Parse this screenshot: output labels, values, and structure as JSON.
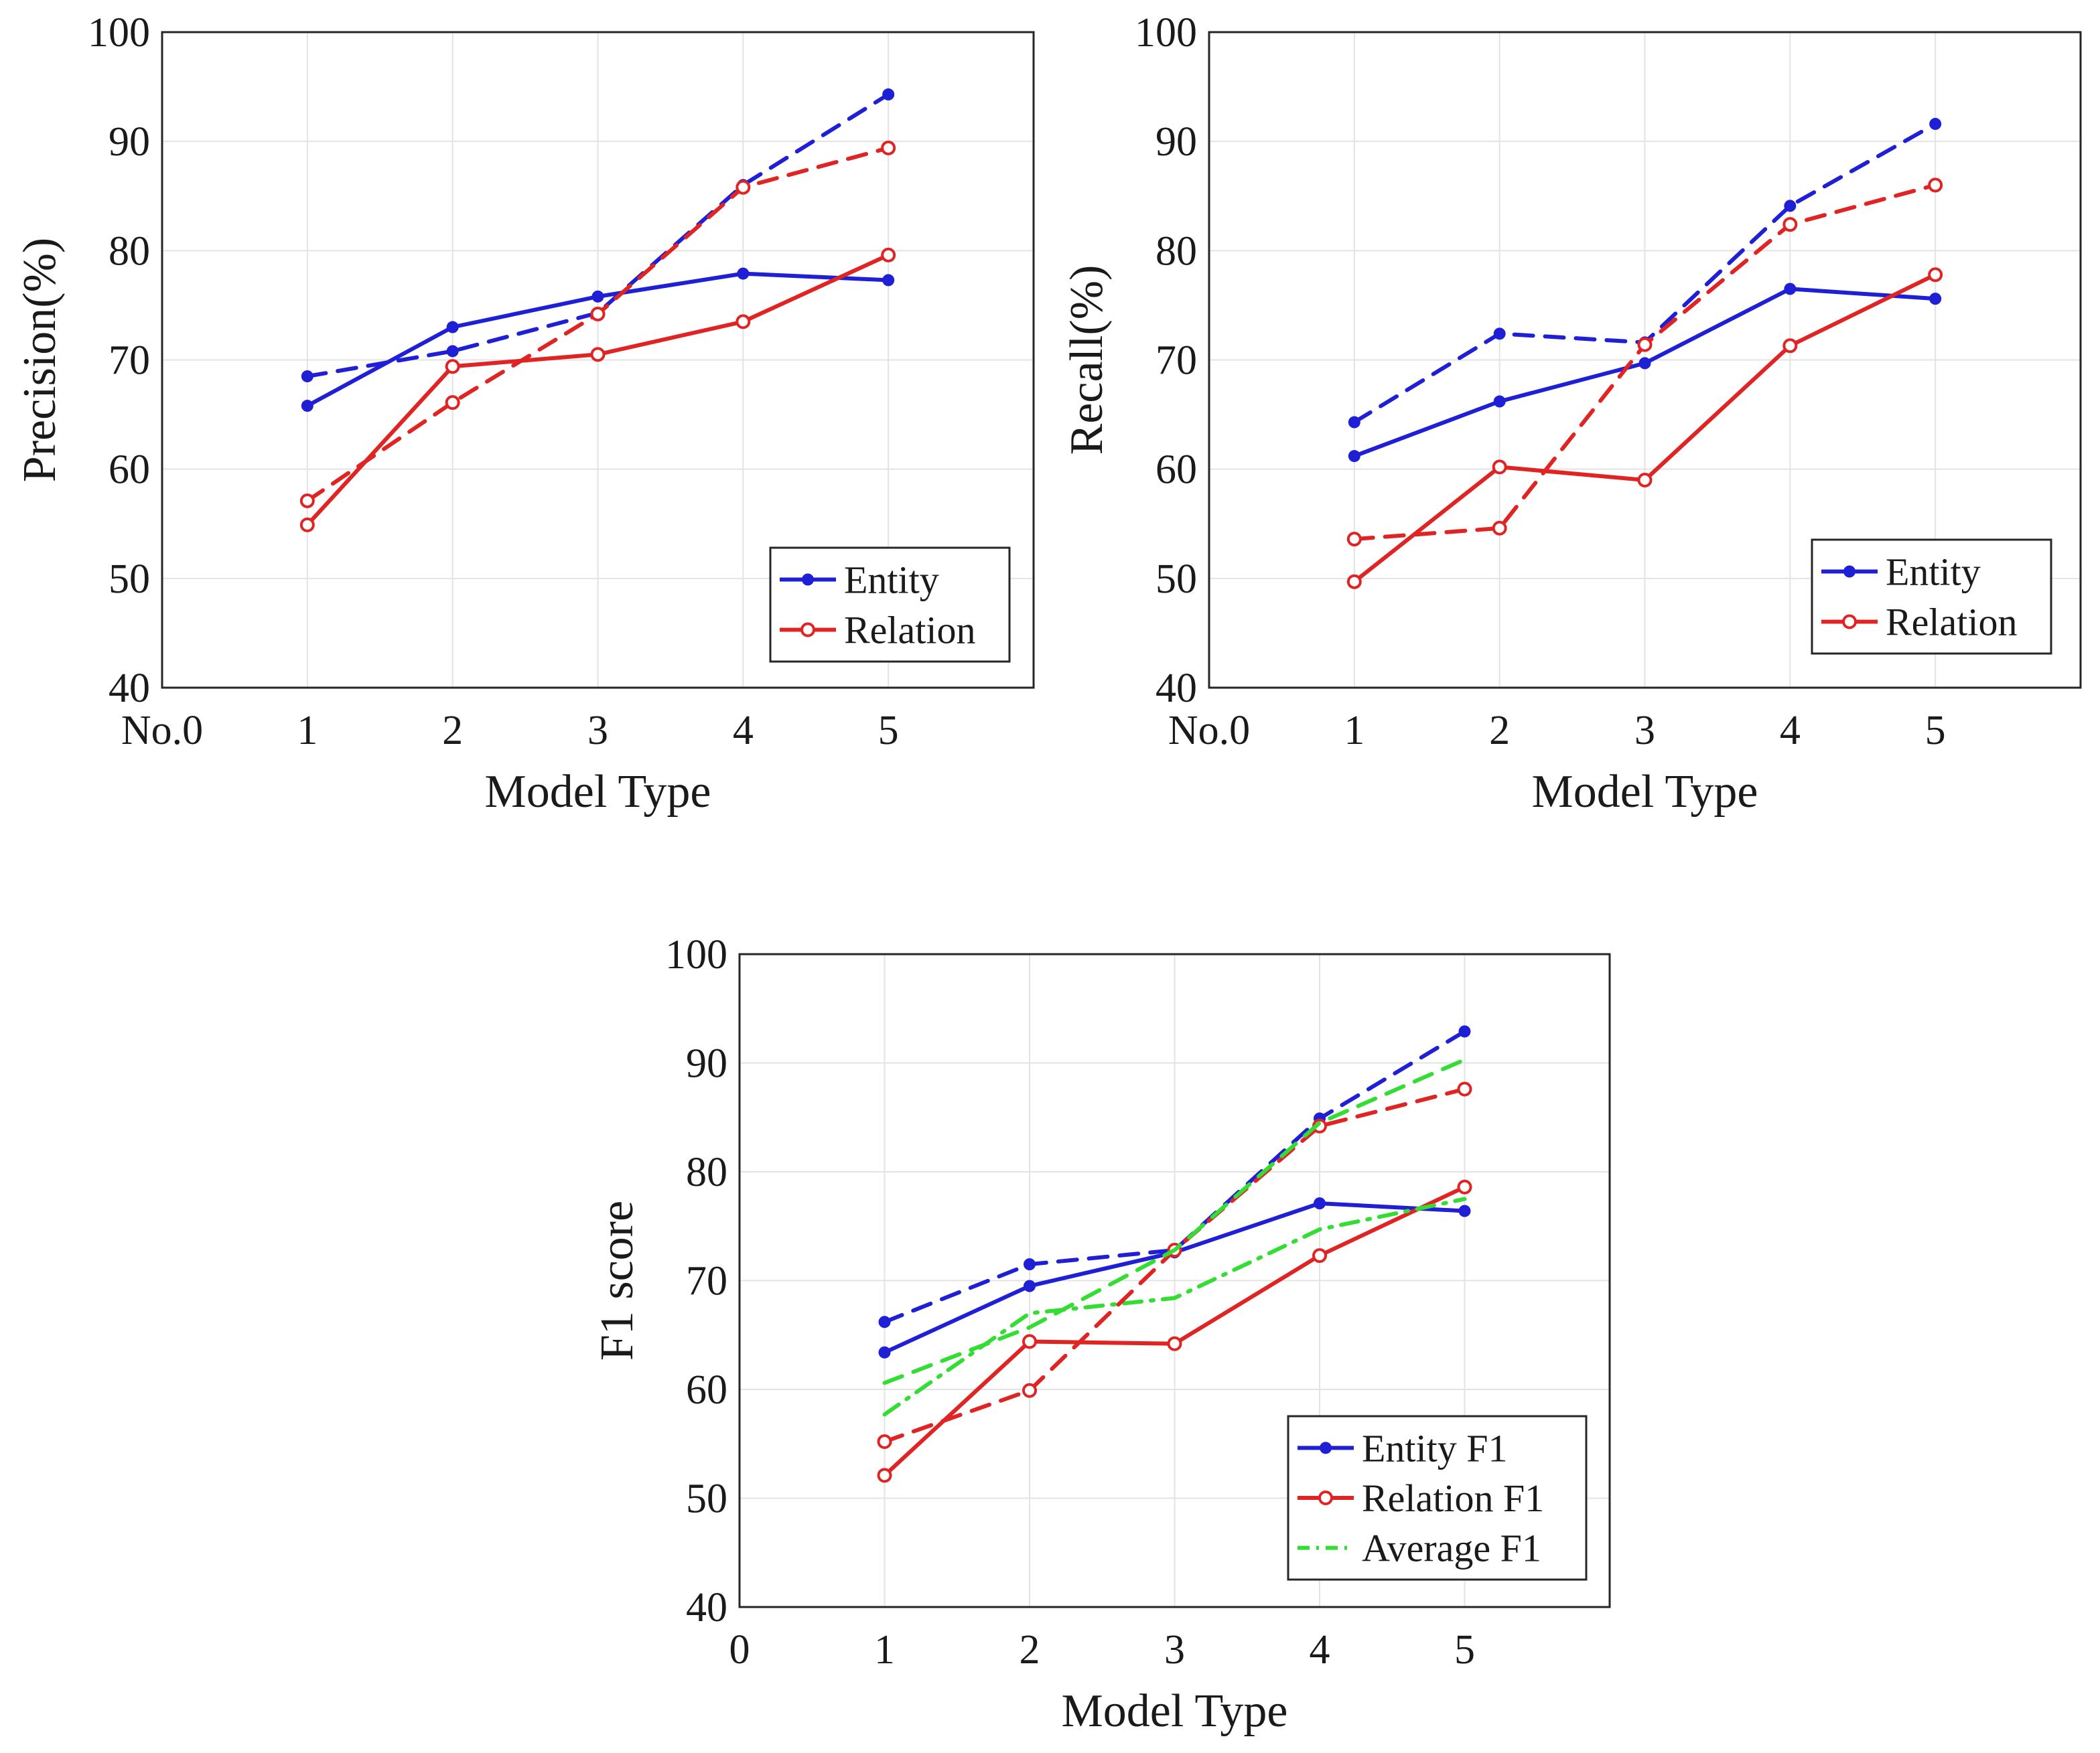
{
  "chart_data": [
    {
      "type": "line",
      "id": "precision",
      "xlabel": "Model Type",
      "ylabel": "Precision(%)",
      "xlim": [
        0,
        6
      ],
      "ylim": [
        40,
        100
      ],
      "xticks": [
        0,
        1,
        2,
        3,
        4,
        5
      ],
      "xtick_labels": [
        "No.0",
        "1",
        "2",
        "3",
        "4",
        "5"
      ],
      "yticks": [
        40,
        50,
        60,
        70,
        80,
        90,
        100
      ],
      "grid": true,
      "legend_position": "bottom-right",
      "series": [
        {
          "name": "Entity",
          "legend": true,
          "color": "#1f1fd6",
          "style": "solid",
          "marker": "filled-dot",
          "x": [
            1,
            2,
            3,
            4,
            5
          ],
          "values": [
            65.8,
            73.0,
            75.8,
            77.9,
            77.3
          ]
        },
        {
          "name": "Relation",
          "legend": true,
          "color": "#e02424",
          "style": "solid",
          "marker": "open-circle",
          "x": [
            1,
            2,
            3,
            4,
            5
          ],
          "values": [
            54.9,
            69.4,
            70.5,
            73.5,
            79.6
          ]
        },
        {
          "name": "Entity (dashed)",
          "legend": false,
          "color": "#1f1fd6",
          "style": "dashed",
          "marker": "filled-dot",
          "x": [
            1,
            2,
            3,
            4,
            5
          ],
          "values": [
            68.5,
            70.8,
            74.3,
            86.0,
            94.3
          ]
        },
        {
          "name": "Relation (dashed)",
          "legend": false,
          "color": "#e02424",
          "style": "dashed",
          "marker": "open-circle",
          "x": [
            1,
            2,
            3,
            4,
            5
          ],
          "values": [
            57.1,
            66.1,
            74.2,
            85.8,
            89.4
          ]
        }
      ]
    },
    {
      "type": "line",
      "id": "recall",
      "xlabel": "Model Type",
      "ylabel": "Recall(%)",
      "xlim": [
        0,
        6
      ],
      "ylim": [
        40,
        100
      ],
      "xticks": [
        0,
        1,
        2,
        3,
        4,
        5
      ],
      "xtick_labels": [
        "No.0",
        "1",
        "2",
        "3",
        "4",
        "5"
      ],
      "yticks": [
        40,
        50,
        60,
        70,
        80,
        90,
        100
      ],
      "grid": true,
      "legend_position": "bottom-right",
      "series": [
        {
          "name": "Entity",
          "legend": true,
          "color": "#1f1fd6",
          "style": "solid",
          "marker": "filled-dot",
          "x": [
            1,
            2,
            3,
            4,
            5
          ],
          "values": [
            61.2,
            66.2,
            69.7,
            76.5,
            75.6
          ]
        },
        {
          "name": "Relation",
          "legend": true,
          "color": "#e02424",
          "style": "solid",
          "marker": "open-circle",
          "x": [
            1,
            2,
            3,
            4,
            5
          ],
          "values": [
            49.7,
            60.2,
            59.0,
            71.3,
            77.8
          ]
        },
        {
          "name": "Entity (dashed)",
          "legend": false,
          "color": "#1f1fd6",
          "style": "dashed",
          "marker": "filled-dot",
          "x": [
            1,
            2,
            3,
            4,
            5
          ],
          "values": [
            64.3,
            72.4,
            71.6,
            84.1,
            91.6
          ]
        },
        {
          "name": "Relation (dashed)",
          "legend": false,
          "color": "#e02424",
          "style": "dashed",
          "marker": "open-circle",
          "x": [
            1,
            2,
            3,
            4,
            5
          ],
          "values": [
            53.6,
            54.6,
            71.4,
            82.4,
            86.0
          ]
        }
      ]
    },
    {
      "type": "line",
      "id": "f1",
      "xlabel": "Model Type",
      "ylabel": "F1 score",
      "xlim": [
        0,
        6
      ],
      "ylim": [
        40,
        100
      ],
      "xticks": [
        0,
        1,
        2,
        3,
        4,
        5
      ],
      "xtick_labels": [
        "0",
        "1",
        "2",
        "3",
        "4",
        "5"
      ],
      "yticks": [
        40,
        50,
        60,
        70,
        80,
        90,
        100
      ],
      "grid": true,
      "legend_position": "bottom-right",
      "series": [
        {
          "name": "Entity F1",
          "legend": true,
          "color": "#1f1fd6",
          "style": "solid",
          "marker": "filled-dot",
          "x": [
            1,
            2,
            3,
            4,
            5
          ],
          "values": [
            63.4,
            69.5,
            72.6,
            77.1,
            76.4
          ]
        },
        {
          "name": "Relation F1",
          "legend": true,
          "color": "#e02424",
          "style": "solid",
          "marker": "open-circle",
          "x": [
            1,
            2,
            3,
            4,
            5
          ],
          "values": [
            52.1,
            64.4,
            64.2,
            72.3,
            78.6
          ]
        },
        {
          "name": "Average F1",
          "legend": true,
          "color": "#33dd33",
          "style": "dashdot",
          "marker": "none",
          "x": [
            1,
            2,
            3,
            4,
            5
          ],
          "values": [
            57.7,
            67.0,
            68.4,
            74.7,
            77.5
          ]
        },
        {
          "name": "Entity F1 (dashed)",
          "legend": false,
          "color": "#1f1fd6",
          "style": "dashed",
          "marker": "filled-dot",
          "x": [
            1,
            2,
            3,
            4,
            5
          ],
          "values": [
            66.2,
            71.5,
            72.8,
            84.9,
            92.9
          ]
        },
        {
          "name": "Relation F1 (dashed)",
          "legend": false,
          "color": "#e02424",
          "style": "dashed",
          "marker": "open-circle",
          "x": [
            1,
            2,
            3,
            4,
            5
          ],
          "values": [
            55.2,
            59.9,
            72.8,
            84.2,
            87.6
          ]
        },
        {
          "name": "Average F1 (dashed)",
          "legend": false,
          "color": "#33dd33",
          "style": "dashed",
          "marker": "none",
          "x": [
            1,
            2,
            3,
            4,
            5
          ],
          "values": [
            60.6,
            65.7,
            72.8,
            84.5,
            90.3
          ]
        }
      ]
    }
  ]
}
